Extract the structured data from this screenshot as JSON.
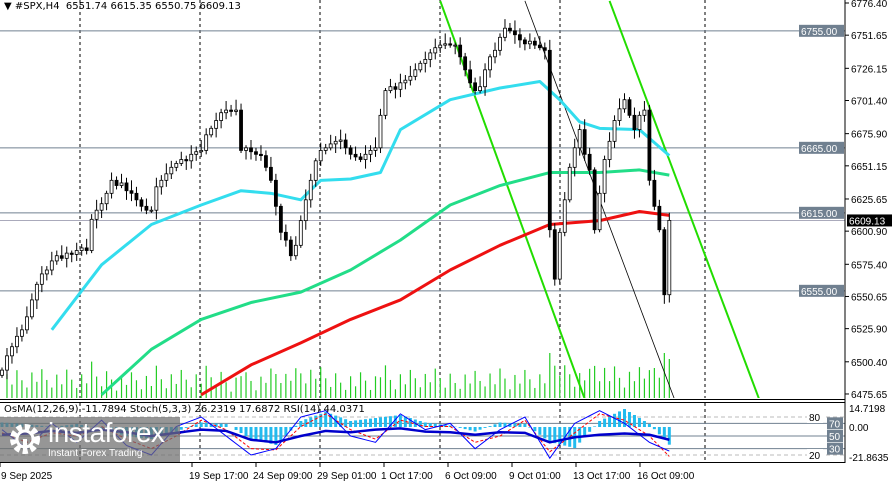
{
  "header": {
    "symbol": "#SPX,H4",
    "ohlc": "6551.74 6615.35 6550.75 6609.13",
    "menu_icon": "triangle-down-icon"
  },
  "indicator_label": "OsMA(12,26,9) -11.7894  Stoch(5,3,3) 26.2319 17.6872  RSI(14) 44.0371",
  "logo": {
    "name": "instaforex",
    "tagline": "Instant Forex Trading",
    "icon": "gear-icon"
  },
  "colors": {
    "ma_fast": "#33ddee",
    "ma_mid": "#22dd88",
    "ma_slow": "#ee1111",
    "channel": "#22dd00",
    "volume": "#22cc22",
    "osma": "#22bbee",
    "rsi": "#0000cc",
    "stoch_main": "#0000ff",
    "stoch_signal": "#ff0000",
    "level_label_bg": "#708090",
    "current_price_bg": "#000000"
  },
  "chart_data": {
    "type": "candlestick",
    "symbol": "#SPX",
    "timeframe": "H4",
    "price_axis_ticks": [
      "6776.40",
      "6751.65",
      "6726.15",
      "6701.40",
      "6675.90",
      "6651.15",
      "6625.65",
      "6600.90",
      "6575.40",
      "6550.65",
      "6525.90",
      "6500.40",
      "6475.65"
    ],
    "ylim": [
      6475.65,
      6776.4
    ],
    "time_axis_labels": [
      "9 Sep 2025",
      "19 Sep 17:00",
      "24 Sep 09:00",
      "29 Sep 01:00",
      "1 Oct 17:00",
      "6 Oct 09:00",
      "9 Oct 01:00",
      "13 Oct 17:00",
      "16 Oct 09:00"
    ],
    "closes": [
      6494,
      6505,
      6512,
      6520,
      6525,
      6535,
      6548,
      6560,
      6568,
      6571,
      6578,
      6582,
      6580,
      6584,
      6583,
      6586,
      6588,
      6586,
      6610,
      6617,
      6622,
      6630,
      6640,
      6636,
      6638,
      6632,
      6630,
      6625,
      6620,
      6617,
      6617,
      6635,
      6640,
      6645,
      6650,
      6653,
      6656,
      6655,
      6660,
      6662,
      6663,
      6675,
      6680,
      6686,
      6692,
      6694,
      6693,
      6694,
      6663,
      6665,
      6662,
      6660,
      6659,
      6650,
      6640,
      6620,
      6600,
      6594,
      6582,
      6590,
      6609,
      6625,
      6640,
      6655,
      6663,
      6665,
      6668,
      6670,
      6671,
      6665,
      6660,
      6658,
      6656,
      6660,
      6663,
      6665,
      6690,
      6709,
      6712,
      6710,
      6715,
      6717,
      6720,
      6725,
      6730,
      6733,
      6738,
      6742,
      6744,
      6745,
      6744,
      6744,
      6735,
      6725,
      6715,
      6709,
      6712,
      6725,
      6735,
      6740,
      6750,
      6757,
      6755,
      6752,
      6748,
      6745,
      6747,
      6744,
      6742,
      6740,
      6602,
      6564,
      6600,
      6625,
      6650,
      6665,
      6679,
      6660,
      6648,
      6602,
      6630,
      6656,
      6670,
      6686,
      6695,
      6702,
      6690,
      6679,
      6690,
      6694,
      6640,
      6620,
      6602,
      6552,
      6609.13
    ],
    "moving_averages": [
      {
        "color_key": "ma_fast",
        "points": [
          [
            10,
            6525
          ],
          [
            20,
            6575
          ],
          [
            30,
            6606
          ],
          [
            40,
            6621
          ],
          [
            48,
            6632
          ],
          [
            54,
            6630
          ],
          [
            60,
            6625
          ],
          [
            64,
            6640
          ],
          [
            70,
            6641
          ],
          [
            76,
            6646
          ],
          [
            80,
            6679
          ],
          [
            90,
            6702
          ],
          [
            100,
            6711
          ],
          [
            108,
            6716
          ],
          [
            112,
            6702
          ],
          [
            116,
            6685
          ],
          [
            120,
            6680
          ],
          [
            128,
            6679
          ],
          [
            134,
            6659
          ]
        ]
      },
      {
        "color_key": "ma_mid",
        "points": [
          [
            20,
            6475
          ],
          [
            30,
            6510
          ],
          [
            40,
            6533
          ],
          [
            50,
            6546
          ],
          [
            60,
            6554
          ],
          [
            70,
            6571
          ],
          [
            80,
            6594
          ],
          [
            90,
            6621
          ],
          [
            100,
            6636
          ],
          [
            110,
            6646
          ],
          [
            120,
            6646
          ],
          [
            128,
            6648
          ],
          [
            134,
            6644
          ]
        ]
      },
      {
        "color_key": "ma_slow",
        "points": [
          [
            40,
            6475
          ],
          [
            50,
            6498
          ],
          [
            60,
            6515
          ],
          [
            70,
            6533
          ],
          [
            80,
            6548
          ],
          [
            90,
            6571
          ],
          [
            100,
            6590
          ],
          [
            110,
            6606
          ],
          [
            120,
            6609
          ],
          [
            128,
            6616
          ],
          [
            134,
            6613
          ]
        ]
      }
    ],
    "horizontal_levels": [
      6755.0,
      6665.0,
      6615.0,
      6555.0
    ],
    "current_price": 6609.13,
    "channel_lines": [
      {
        "color_key": "channel",
        "from": [
          88,
          6778
        ],
        "to": [
          117,
          6472
        ]
      },
      {
        "color_key": "channel",
        "from": [
          122,
          6778
        ],
        "to": [
          152,
          6472
        ]
      },
      {
        "color_key": "thin",
        "from": [
          105,
          6778
        ],
        "to": [
          135,
          6472
        ]
      }
    ],
    "indicator": {
      "osma_range": [
        -21.8635,
        14.7198
      ],
      "osma_axis_labels": [
        "14.7198",
        "0.00",
        "-21.8635"
      ],
      "osma_every5": [
        3,
        2,
        0,
        2,
        -1,
        -6,
        -8,
        -3,
        3,
        2,
        -8,
        -12,
        4,
        10,
        4,
        6,
        8,
        3,
        1,
        -3,
        3,
        2,
        -10,
        -14,
        4,
        12,
        2,
        -11.79
      ],
      "rsi_levels": [
        "80",
        "70",
        "50",
        "30",
        "20"
      ],
      "rsi_every5": [
        52,
        54,
        58,
        55,
        60,
        56,
        50,
        55,
        60,
        58,
        44,
        40,
        50,
        58,
        56,
        60,
        62,
        57,
        56,
        52,
        56,
        55,
        40,
        48,
        52,
        54,
        52,
        44.04
      ],
      "stoch_main_every5": [
        60,
        30,
        70,
        40,
        75,
        35,
        20,
        65,
        80,
        50,
        20,
        30,
        80,
        90,
        50,
        40,
        85,
        60,
        70,
        30,
        60,
        80,
        15,
        70,
        90,
        70,
        40,
        26.23
      ],
      "stoch_signal_every5": [
        55,
        40,
        55,
        50,
        65,
        45,
        30,
        50,
        75,
        60,
        30,
        28,
        65,
        85,
        60,
        45,
        75,
        65,
        65,
        40,
        50,
        75,
        25,
        55,
        85,
        75,
        50,
        17.69
      ]
    }
  }
}
